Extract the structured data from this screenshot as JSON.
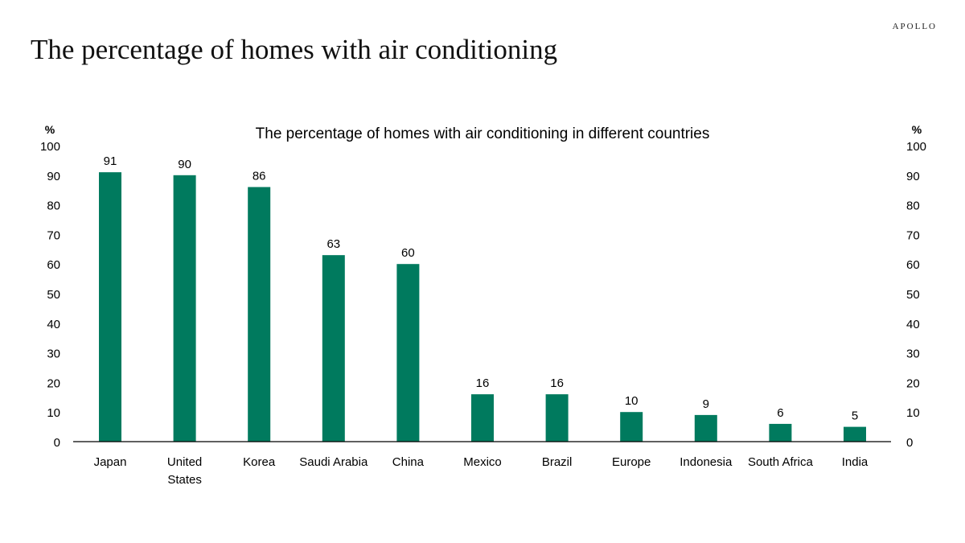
{
  "header": {
    "brand": "APOLLO",
    "title": "The percentage of homes with air conditioning"
  },
  "chart_data": {
    "type": "bar",
    "title": "The percentage of homes with air conditioning in different countries",
    "xlabel": "",
    "ylabel": "%",
    "ylabel_right": "%",
    "categories": [
      "Japan",
      "United States",
      "Korea",
      "Saudi Arabia",
      "China",
      "Mexico",
      "Brazil",
      "Europe",
      "Indonesia",
      "South Africa",
      "India"
    ],
    "category_lines": [
      [
        "Japan"
      ],
      [
        "United",
        "States"
      ],
      [
        "Korea"
      ],
      [
        "Saudi Arabia"
      ],
      [
        "China"
      ],
      [
        "Mexico"
      ],
      [
        "Brazil"
      ],
      [
        "Europe"
      ],
      [
        "Indonesia"
      ],
      [
        "South Africa"
      ],
      [
        "India"
      ]
    ],
    "values": [
      91,
      90,
      86,
      63,
      60,
      16,
      16,
      10,
      9,
      6,
      5
    ],
    "data_labels": [
      "91",
      "90",
      "86",
      "63",
      "60",
      "16",
      "16",
      "10",
      "9",
      "6",
      "5"
    ],
    "yticks": [
      "0",
      "10",
      "20",
      "30",
      "40",
      "50",
      "60",
      "70",
      "80",
      "90",
      "100"
    ],
    "ylim": [
      0,
      100
    ],
    "grid": false,
    "legend": "none",
    "bar_color": "#007A5E"
  }
}
